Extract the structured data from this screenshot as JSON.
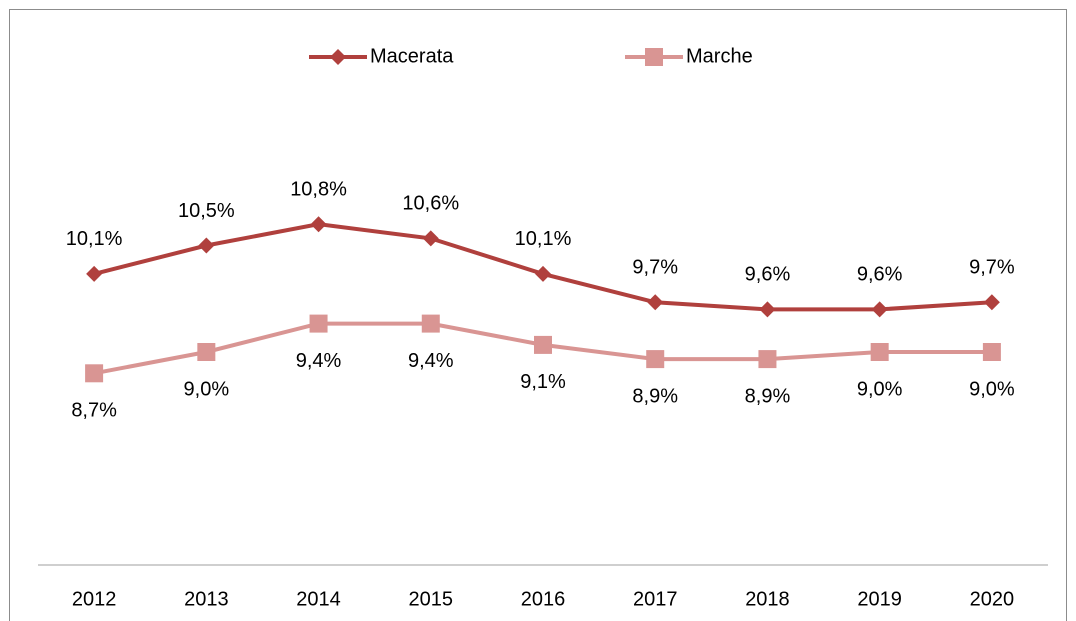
{
  "chart_data": {
    "type": "line",
    "categories": [
      "2012",
      "2013",
      "2014",
      "2015",
      "2016",
      "2017",
      "2018",
      "2019",
      "2020"
    ],
    "series": [
      {
        "name": "Macerata",
        "color": "#b0403d",
        "marker": "diamond",
        "values": [
          10.1,
          10.5,
          10.8,
          10.6,
          10.1,
          9.7,
          9.6,
          9.6,
          9.7
        ],
        "value_labels": [
          "10,1%",
          "10,5%",
          "10,8%",
          "10,6%",
          "10,1%",
          "9,7%",
          "9,6%",
          "9,6%",
          "9,7%"
        ]
      },
      {
        "name": "Marche",
        "color": "#d99593",
        "marker": "square",
        "values": [
          8.7,
          9.0,
          9.4,
          9.4,
          9.1,
          8.9,
          8.9,
          9.0,
          9.0
        ],
        "value_labels": [
          "8,7%",
          "9,0%",
          "9,4%",
          "9,4%",
          "9,1%",
          "8,9%",
          "8,9%",
          "9,0%",
          "9,0%"
        ]
      }
    ],
    "ylim": [
      6,
      12
    ],
    "legend": "top"
  }
}
